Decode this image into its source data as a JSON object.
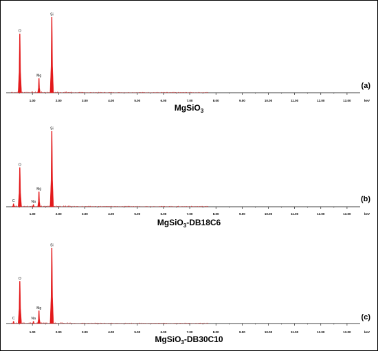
{
  "chart_data": [
    {
      "type": "bar",
      "panel_label": "(a)",
      "caption_main": "MgSiO",
      "caption_sub": "3",
      "caption_suffix": "",
      "xlabel": "keV",
      "ylabel": "",
      "xlim": [
        0.0,
        13.5
      ],
      "ylim": [
        0,
        100
      ],
      "x_ticks": [
        "1.00",
        "2.00",
        "3.00",
        "4.00",
        "5.00",
        "6.00",
        "7.00",
        "8.00",
        "9.00",
        "10.00",
        "11.00",
        "12.00",
        "13.00"
      ],
      "peaks": [
        {
          "label": "O",
          "x": 0.52,
          "y": 78
        },
        {
          "label": "Mg",
          "x": 1.25,
          "y": 19
        },
        {
          "label": "Si",
          "x": 1.74,
          "y": 100
        }
      ]
    },
    {
      "type": "bar",
      "panel_label": "(b)",
      "caption_main": "MgSiO",
      "caption_sub": "3",
      "caption_suffix": "-DB18C6",
      "xlabel": "keV",
      "ylabel": "",
      "xlim": [
        0.0,
        13.5
      ],
      "ylim": [
        0,
        100
      ],
      "x_ticks": [
        "1.00",
        "2.00",
        "3.00",
        "4.00",
        "5.00",
        "6.00",
        "7.00",
        "8.00",
        "9.00",
        "10.00",
        "11.00",
        "12.00",
        "13.00"
      ],
      "peaks": [
        {
          "label": "C",
          "x": 0.28,
          "y": 4
        },
        {
          "label": "O",
          "x": 0.52,
          "y": 52
        },
        {
          "label": "Na",
          "x": 1.04,
          "y": 3
        },
        {
          "label": "Mg",
          "x": 1.25,
          "y": 20
        },
        {
          "label": "Si",
          "x": 1.74,
          "y": 100
        }
      ]
    },
    {
      "type": "bar",
      "panel_label": "(c)",
      "caption_main": "MgSiO",
      "caption_sub": "3",
      "caption_suffix": "-DB30C10",
      "xlabel": "keV",
      "ylabel": "",
      "xlim": [
        0.0,
        13.5
      ],
      "ylim": [
        0,
        100
      ],
      "x_ticks": [
        "1.00",
        "2.00",
        "3.00",
        "4.00",
        "5.00",
        "6.00",
        "7.00",
        "8.00",
        "9.00",
        "10.00",
        "11.00",
        "12.00",
        "13.00"
      ],
      "peaks": [
        {
          "label": "C",
          "x": 0.28,
          "y": 3
        },
        {
          "label": "O",
          "x": 0.52,
          "y": 56
        },
        {
          "label": "Na",
          "x": 1.04,
          "y": 3
        },
        {
          "label": "Mg",
          "x": 1.25,
          "y": 17
        },
        {
          "label": "Si",
          "x": 1.74,
          "y": 100
        }
      ]
    }
  ],
  "colors": {
    "peak": "#e31a1c",
    "axis": "#000000"
  }
}
